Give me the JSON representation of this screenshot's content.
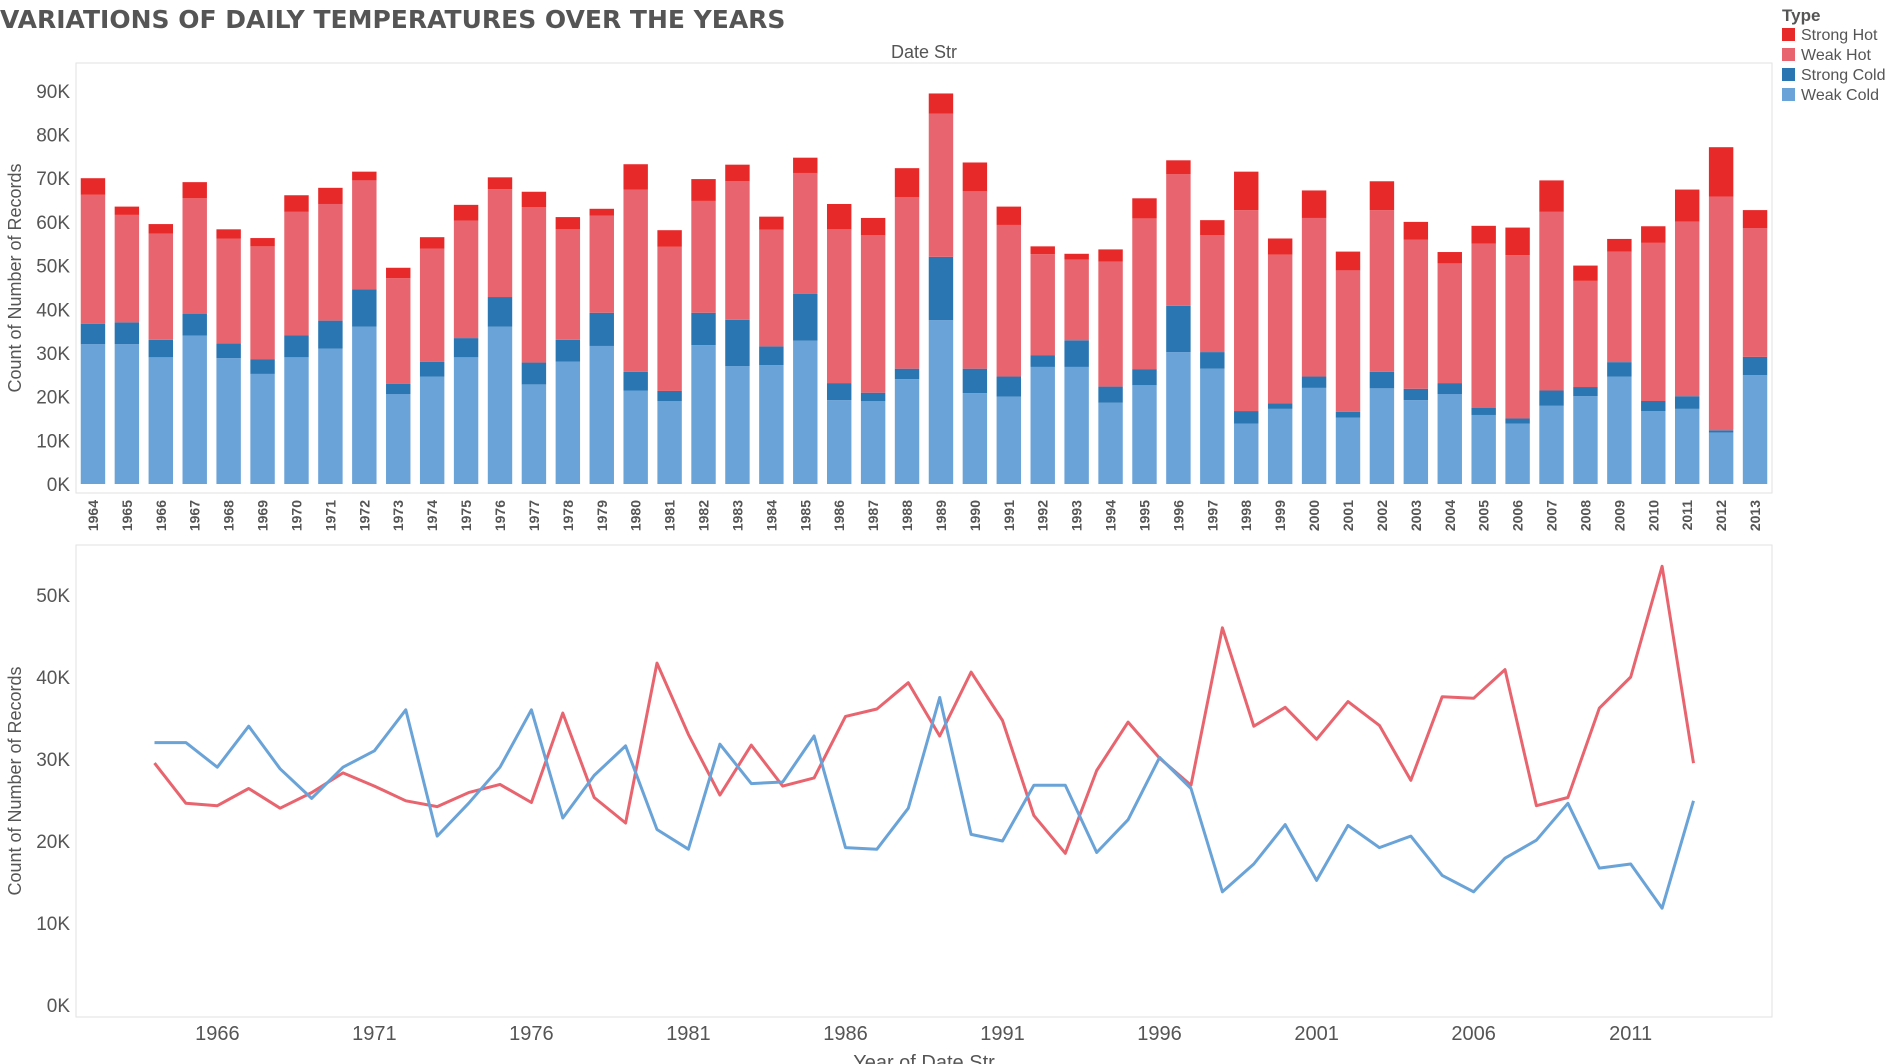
{
  "page": {
    "title": "VARIATIONS OF DAILY TEMPERATURES OVER THE YEARS"
  },
  "legend": {
    "title": "Type",
    "items": [
      {
        "label": "Strong Hot",
        "color": "#e8292a"
      },
      {
        "label": "Weak Hot",
        "color": "#e8646e"
      },
      {
        "label": "Strong Cold",
        "color": "#2a76b3"
      },
      {
        "label": "Weak Cold",
        "color": "#6aa3d8"
      }
    ]
  },
  "chart_data": [
    {
      "type": "bar",
      "stacked": true,
      "title": "Date Str",
      "ylabel": "Count of Number of Records",
      "ylim": [
        0,
        95000
      ],
      "yticks": [
        0,
        10000,
        20000,
        30000,
        40000,
        50000,
        60000,
        70000,
        80000,
        90000
      ],
      "ytick_labels": [
        "0K",
        "10K",
        "20K",
        "30K",
        "40K",
        "50K",
        "60K",
        "70K",
        "80K",
        "90K"
      ],
      "categories": [
        "1964",
        "1965",
        "1966",
        "1967",
        "1968",
        "1969",
        "1970",
        "1971",
        "1972",
        "1973",
        "1974",
        "1975",
        "1976",
        "1977",
        "1978",
        "1979",
        "1980",
        "1981",
        "1982",
        "1983",
        "1984",
        "1985",
        "1986",
        "1987",
        "1988",
        "1989",
        "1990",
        "1991",
        "1992",
        "1993",
        "1994",
        "1995",
        "1996",
        "1997",
        "1998",
        "1999",
        "2000",
        "2001",
        "2002",
        "2003",
        "2004",
        "2005",
        "2006",
        "2007",
        "2008",
        "2009",
        "2010",
        "2011",
        "2012",
        "2013"
      ],
      "series": [
        {
          "name": "Weak Cold",
          "color": "#6aa3d8",
          "values": [
            32000,
            32000,
            29000,
            34000,
            28800,
            25200,
            29000,
            31000,
            36000,
            20600,
            24600,
            29000,
            36000,
            22800,
            28000,
            31600,
            21400,
            19000,
            31800,
            27000,
            27200,
            32800,
            19200,
            19000,
            24000,
            37500,
            20800,
            20000,
            26800,
            26800,
            18600,
            22600,
            30200,
            26400,
            13800,
            17200,
            22000,
            15200,
            21900,
            19200,
            20600,
            15800,
            13800,
            17900,
            20100,
            24600,
            16700,
            17200,
            11800,
            24900
          ]
        },
        {
          "name": "Strong Cold",
          "color": "#2a76b3",
          "values": [
            4700,
            5000,
            4000,
            5000,
            3400,
            3300,
            5000,
            6400,
            8600,
            2300,
            3400,
            4400,
            6800,
            5000,
            5000,
            7600,
            4300,
            2300,
            7400,
            10600,
            4300,
            10700,
            3900,
            1900,
            2400,
            14500,
            5600,
            4600,
            2700,
            6100,
            3700,
            3700,
            10600,
            3800,
            2900,
            1300,
            2600,
            1300,
            3800,
            2600,
            2500,
            1600,
            1200,
            3500,
            2100,
            3300,
            2300,
            2900,
            500,
            4200
          ]
        },
        {
          "name": "Weak Hot",
          "color": "#e8646e",
          "values": [
            29500,
            24600,
            24300,
            26400,
            24000,
            25900,
            28300,
            26700,
            24900,
            24200,
            25900,
            26900,
            24700,
            35600,
            25300,
            22200,
            41700,
            33000,
            25600,
            31700,
            26700,
            27700,
            35200,
            36100,
            39300,
            32800,
            40600,
            34700,
            23100,
            18500,
            28600,
            34500,
            30100,
            26800,
            46000,
            34000,
            36300,
            32400,
            37000,
            34100,
            27400,
            37600,
            37400,
            40900,
            24300,
            25300,
            36200,
            40000,
            53500,
            29500
          ]
        },
        {
          "name": "Strong Hot",
          "color": "#e8292a",
          "values": [
            3800,
            1900,
            2200,
            3700,
            2100,
            1900,
            3800,
            3700,
            2000,
            2400,
            2600,
            3600,
            2700,
            3500,
            2800,
            1600,
            5800,
            3800,
            5000,
            3800,
            3000,
            3500,
            5800,
            3900,
            6600,
            4600,
            6600,
            4200,
            1800,
            1300,
            2800,
            4600,
            3200,
            3400,
            8800,
            3700,
            6300,
            4300,
            6600,
            4100,
            2600,
            4100,
            6300,
            7200,
            3500,
            2900,
            3800,
            7300,
            11300,
            4100
          ]
        }
      ]
    },
    {
      "type": "line",
      "xlabel": "Year of Date Str",
      "ylabel": "Count of Number of Records",
      "ylim": [
        0,
        55000
      ],
      "yticks": [
        0,
        10000,
        20000,
        30000,
        40000,
        50000
      ],
      "ytick_labels": [
        "0K",
        "10K",
        "20K",
        "30K",
        "40K",
        "50K"
      ],
      "xticks": [
        1966,
        1971,
        1976,
        1981,
        1986,
        1991,
        1996,
        2001,
        2006,
        2011
      ],
      "xtick_labels": [
        "1966",
        "1971",
        "1976",
        "1981",
        "1986",
        "1991",
        "1996",
        "2001",
        "2006",
        "2011"
      ],
      "xlim": [
        1961.5,
        2015.5
      ],
      "x": [
        1964,
        1965,
        1966,
        1967,
        1968,
        1969,
        1970,
        1971,
        1972,
        1973,
        1974,
        1975,
        1976,
        1977,
        1978,
        1979,
        1980,
        1981,
        1982,
        1983,
        1984,
        1985,
        1986,
        1987,
        1988,
        1989,
        1990,
        1991,
        1992,
        1993,
        1994,
        1995,
        1996,
        1997,
        1998,
        1999,
        2000,
        2001,
        2002,
        2003,
        2004,
        2005,
        2006,
        2007,
        2008,
        2009,
        2010,
        2011,
        2012,
        2013
      ],
      "series": [
        {
          "name": "Weak Hot",
          "color": "#e8646e",
          "values": [
            29500,
            24600,
            24300,
            26400,
            24000,
            25900,
            28300,
            26700,
            24900,
            24200,
            25900,
            26900,
            24700,
            35600,
            25300,
            22200,
            41700,
            33000,
            25600,
            31700,
            26700,
            27700,
            35200,
            36100,
            39300,
            32800,
            40600,
            34700,
            23100,
            18500,
            28600,
            34500,
            30100,
            26800,
            46000,
            34000,
            36300,
            32400,
            37000,
            34100,
            27400,
            37600,
            37400,
            40900,
            24300,
            25300,
            36200,
            40000,
            53500,
            29500
          ]
        },
        {
          "name": "Weak Cold",
          "color": "#6aa3d8",
          "values": [
            32000,
            32000,
            29000,
            34000,
            28800,
            25200,
            29000,
            31000,
            36000,
            20600,
            24600,
            29000,
            36000,
            22800,
            28000,
            31600,
            21400,
            19000,
            31800,
            27000,
            27200,
            32800,
            19200,
            19000,
            24000,
            37500,
            20800,
            20000,
            26800,
            26800,
            18600,
            22600,
            30200,
            26400,
            13800,
            17200,
            22000,
            15200,
            21900,
            19200,
            20600,
            15800,
            13800,
            17900,
            20100,
            24600,
            16700,
            17200,
            11800,
            24900
          ]
        }
      ]
    }
  ]
}
